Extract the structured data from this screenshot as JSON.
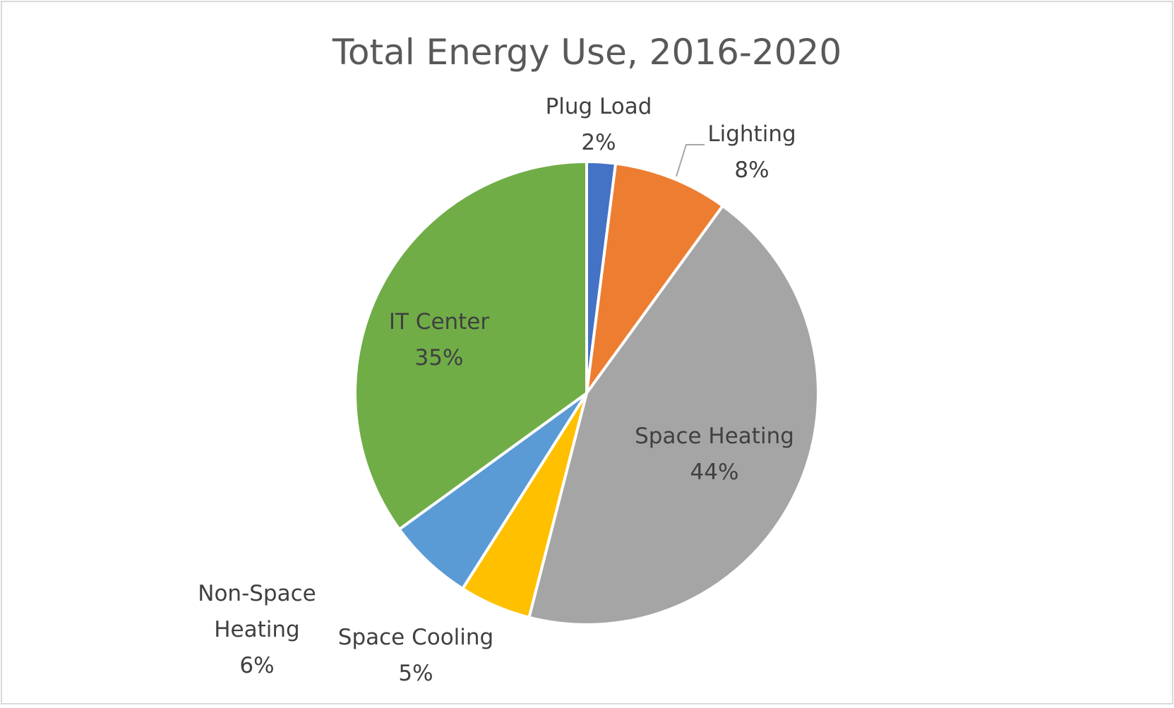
{
  "chart_data": {
    "type": "pie",
    "title": "Total Energy Use, 2016-2020",
    "categories": [
      "Plug Load",
      "Lighting",
      "Space Heating",
      "Space Cooling",
      "Non-Space Heating",
      "IT Center"
    ],
    "values": [
      2,
      8,
      44,
      5,
      6,
      35
    ],
    "value_labels": [
      "2%",
      "8%",
      "44%",
      "5%",
      "6%",
      "35%"
    ],
    "colors": [
      "#4472c4",
      "#ed7d31",
      "#a5a5a5",
      "#ffc000",
      "#5b9bd5",
      "#70ad47"
    ]
  }
}
